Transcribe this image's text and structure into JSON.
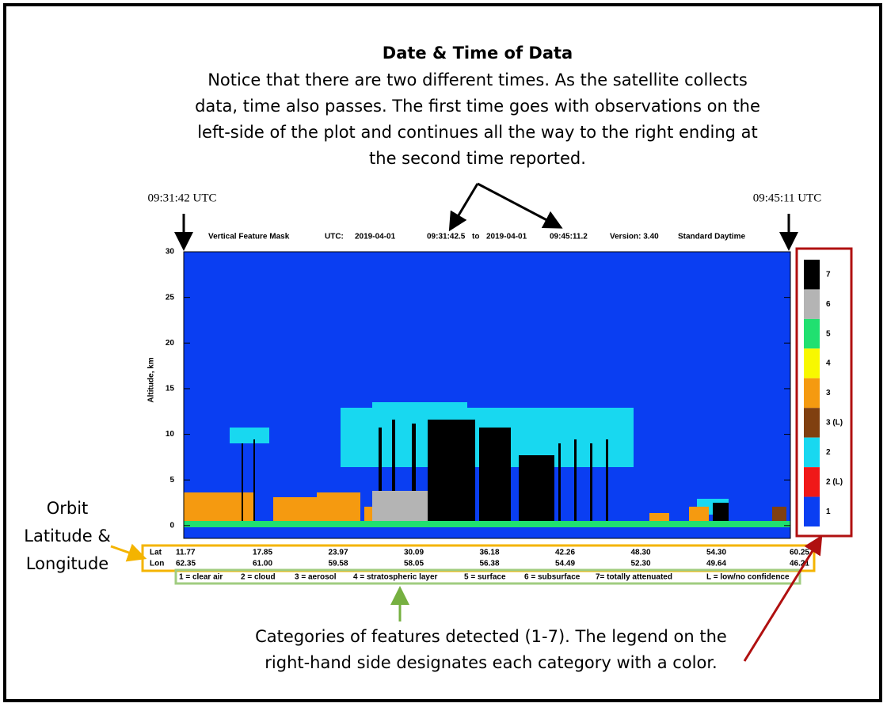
{
  "annotations": {
    "title": "Date & Time of Data",
    "body_lines": [
      "Notice that there are two different times. As the satellite collects",
      "data, time also passes. The first time goes with observations on the",
      "left-side of the plot and continues all the way to the right ending at",
      "the second time reported."
    ],
    "start_time": "09:31:42 UTC",
    "end_time": "09:45:11 UTC",
    "orbit_lines": [
      "Orbit",
      "Latitude &",
      "Longitude"
    ],
    "categories_lines": [
      "Categories of features detected (1-7). The legend on the",
      "right-hand side designates each category with a color."
    ]
  },
  "plot": {
    "header": [
      "Vertical Feature Mask",
      "UTC:",
      "2019-04-01",
      "09:31:42.5",
      "to",
      "2019-04-01",
      "09:45:11.2",
      "Version: 3.40",
      "Standard Daytime"
    ],
    "y_label": "Altitude, km",
    "ylim": [
      -1.4,
      30
    ],
    "yticks": [
      0,
      5,
      10,
      15,
      20,
      25,
      30
    ],
    "lat_label": "Lat",
    "lon_label": "Lon",
    "lat": [
      "11.77",
      "17.85",
      "23.97",
      "30.09",
      "36.18",
      "42.26",
      "48.30",
      "54.30",
      "60.25"
    ],
    "lon": [
      "62.35",
      "61.00",
      "59.58",
      "58.05",
      "56.38",
      "54.49",
      "52.30",
      "49.64",
      "46.21"
    ],
    "key": [
      "1 = clear air",
      "2 = cloud",
      "3 = aerosol",
      "4 = stratospheric layer",
      "5 = surface",
      "6 = subsurface",
      "7= totally attenuated",
      "L = low/no confidence"
    ],
    "colorbar": [
      {
        "label": "7",
        "color": "#000000"
      },
      {
        "label": "6",
        "color": "#b4b4b4"
      },
      {
        "label": "5",
        "color": "#20e070"
      },
      {
        "label": "4",
        "color": "#f8f800"
      },
      {
        "label": "3",
        "color": "#f59a10"
      },
      {
        "label": "3 (L)",
        "color": "#804010"
      },
      {
        "label": "2",
        "color": "#18d8f0"
      },
      {
        "label": "2 (L)",
        "color": "#f01818"
      },
      {
        "label": "1",
        "color": "#0a3ef2"
      }
    ]
  }
}
